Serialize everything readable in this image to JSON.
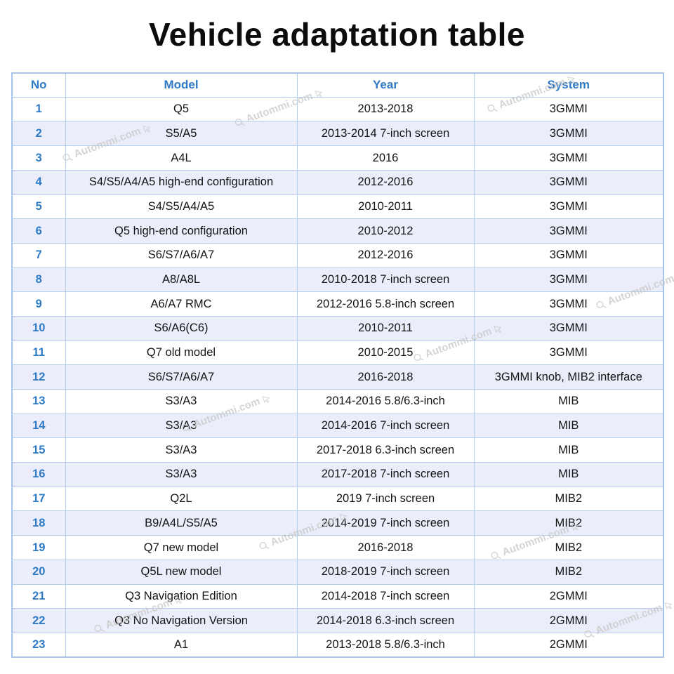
{
  "page": {
    "title": "Vehicle adaptation table"
  },
  "watermark": {
    "text": "Autommi.com"
  },
  "table": {
    "headers": [
      "No",
      "Model",
      "Year",
      "System"
    ],
    "rows": [
      {
        "no": "1",
        "model": "Q5",
        "year": "2013-2018",
        "system": "3GMMI"
      },
      {
        "no": "2",
        "model": "S5/A5",
        "year": "2013-2014 7-inch screen",
        "system": "3GMMI"
      },
      {
        "no": "3",
        "model": "A4L",
        "year": "2016",
        "system": "3GMMI"
      },
      {
        "no": "4",
        "model": "S4/S5/A4/A5 high-end configuration",
        "year": "2012-2016",
        "system": "3GMMI"
      },
      {
        "no": "5",
        "model": "S4/S5/A4/A5",
        "year": "2010-2011",
        "system": "3GMMI"
      },
      {
        "no": "6",
        "model": "Q5 high-end configuration",
        "year": "2010-2012",
        "system": "3GMMI"
      },
      {
        "no": "7",
        "model": "S6/S7/A6/A7",
        "year": "2012-2016",
        "system": "3GMMI"
      },
      {
        "no": "8",
        "model": "A8/A8L",
        "year": "2010-2018 7-inch screen",
        "system": "3GMMI"
      },
      {
        "no": "9",
        "model": "A6/A7 RMC",
        "year": "2012-2016 5.8-inch screen",
        "system": "3GMMI"
      },
      {
        "no": "10",
        "model": "S6/A6(C6)",
        "year": "2010-2011",
        "system": "3GMMI"
      },
      {
        "no": "11",
        "model": "Q7 old model",
        "year": "2010-2015",
        "system": "3GMMI"
      },
      {
        "no": "12",
        "model": "S6/S7/A6/A7",
        "year": "2016-2018",
        "system": "3GMMI knob, MIB2 interface"
      },
      {
        "no": "13",
        "model": "S3/A3",
        "year": "2014-2016 5.8/6.3-inch",
        "system": "MIB"
      },
      {
        "no": "14",
        "model": "S3/A3",
        "year": "2014-2016 7-inch screen",
        "system": "MIB"
      },
      {
        "no": "15",
        "model": "S3/A3",
        "year": "2017-2018 6.3-inch screen",
        "system": "MIB"
      },
      {
        "no": "16",
        "model": "S3/A3",
        "year": "2017-2018 7-inch screen",
        "system": "MIB"
      },
      {
        "no": "17",
        "model": "Q2L",
        "year": "2019 7-inch screen",
        "system": "MIB2"
      },
      {
        "no": "18",
        "model": "B9/A4L/S5/A5",
        "year": "2014-2019 7-inch screen",
        "system": "MIB2"
      },
      {
        "no": "19",
        "model": "Q7 new model",
        "year": "2016-2018",
        "system": "MIB2"
      },
      {
        "no": "20",
        "model": "Q5L new model",
        "year": "2018-2019 7-inch screen",
        "system": "MIB2"
      },
      {
        "no": "21",
        "model": "Q3 Navigation Edition",
        "year": "2014-2018 7-inch screen",
        "system": "2GMMI"
      },
      {
        "no": "22",
        "model": "Q3 No Navigation Version",
        "year": "2014-2018 6.3-inch screen",
        "system": "2GMMI"
      },
      {
        "no": "23",
        "model": "A1",
        "year": "2013-2018 5.8/6.3-inch",
        "system": "2GMMI"
      }
    ]
  },
  "colors": {
    "header_text": "#2f7ac5",
    "no_column_text": "#2f7ac5",
    "border": "#b3d0ee",
    "alt_row_bg": "#ebeefa",
    "title_text": "#0c0c0c",
    "watermark": "#c7c7c7"
  }
}
